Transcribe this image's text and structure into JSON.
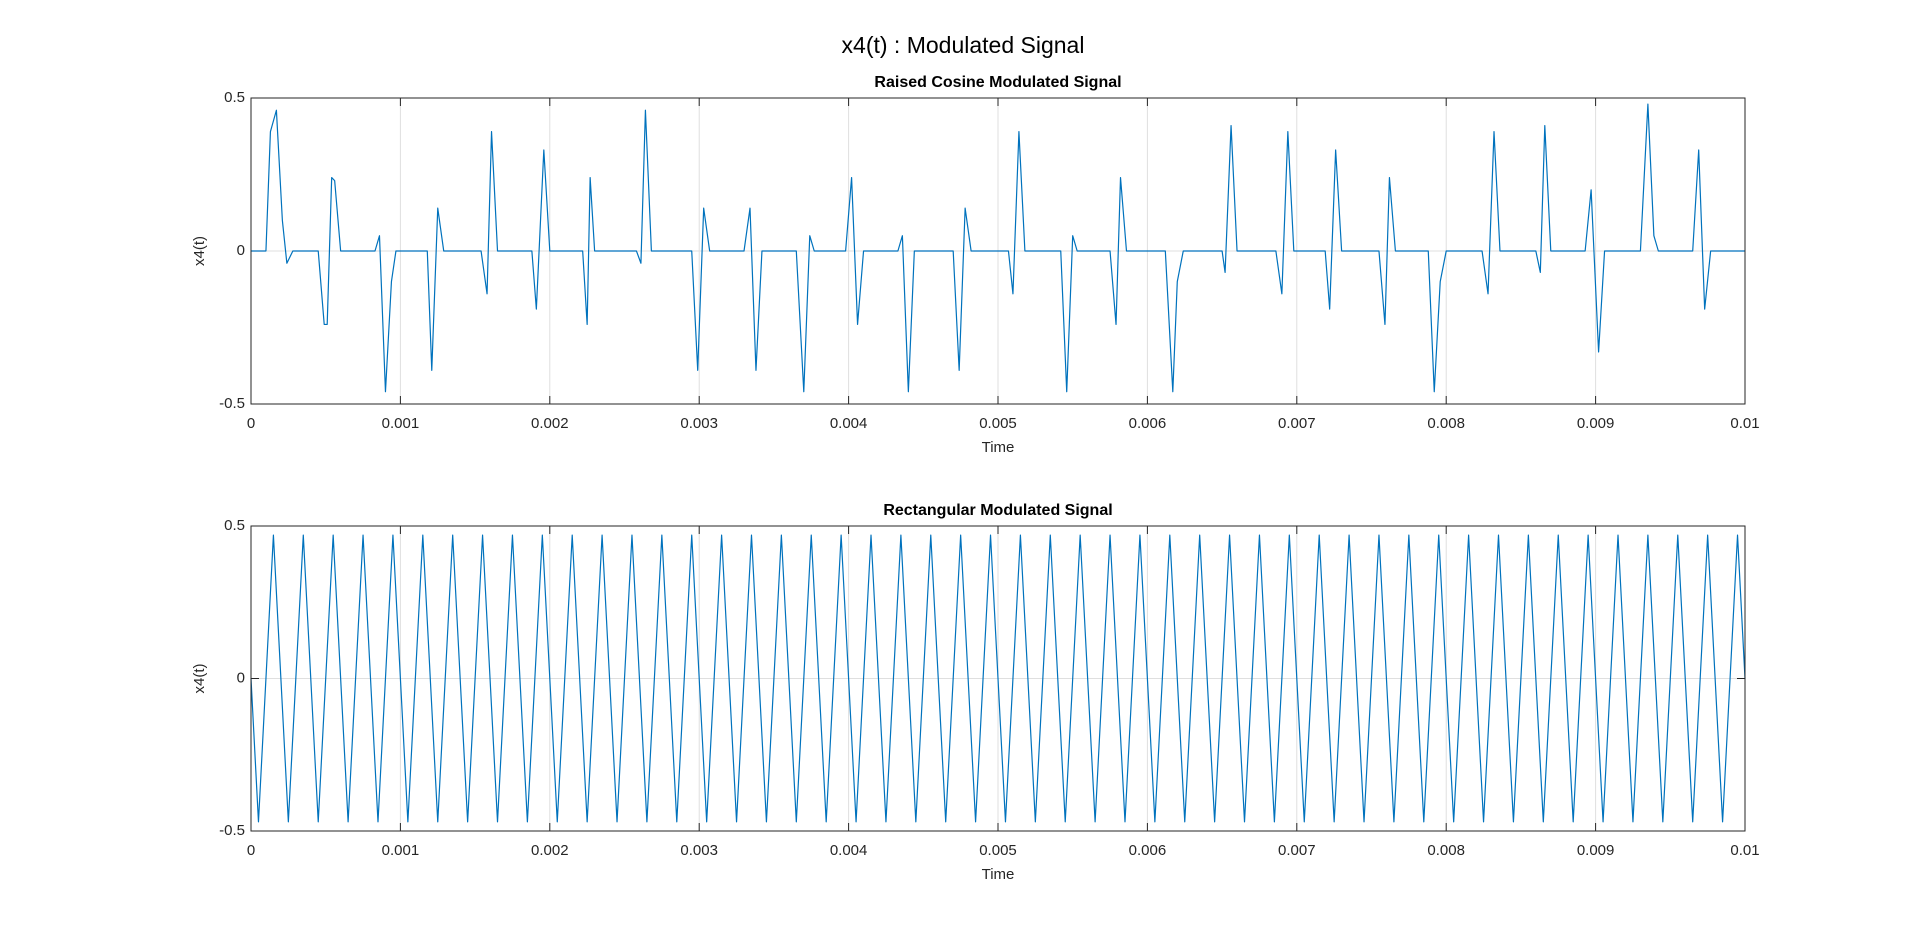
{
  "title": "x4(t) : Modulated Signal",
  "chart_data": [
    {
      "type": "line",
      "title": "Raised Cosine Modulated Signal",
      "xlabel": "Time",
      "ylabel": "x4(t)",
      "color": "#0072bd",
      "grid": true,
      "xlim": [
        0,
        0.01
      ],
      "ylim": [
        -0.5,
        0.5
      ],
      "xticks": [
        0,
        0.001,
        0.002,
        0.003,
        0.004,
        0.005,
        0.006,
        0.007,
        0.008,
        0.009,
        0.01
      ],
      "yticks": [
        -0.5,
        0,
        0.5
      ],
      "x": [
        0,
        0.0001,
        0.00013,
        0.00017,
        0.00021,
        0.00024,
        0.00028,
        0.00045,
        0.00049,
        0.00051,
        0.00054,
        0.00056,
        0.0006,
        0.00083,
        0.00086,
        0.0009,
        0.00094,
        0.00097,
        0.00118,
        0.00121,
        0.00125,
        0.00129,
        0.00154,
        0.00158,
        0.00161,
        0.00165,
        0.00188,
        0.00191,
        0.00196,
        0.002,
        0.00222,
        0.00225,
        0.00227,
        0.0023,
        0.00258,
        0.00261,
        0.00264,
        0.00268,
        0.00295,
        0.00299,
        0.00303,
        0.00307,
        0.0033,
        0.00334,
        0.00338,
        0.00342,
        0.00365,
        0.0037,
        0.00374,
        0.00377,
        0.00398,
        0.00402,
        0.00406,
        0.0041,
        0.00433,
        0.00436,
        0.0044,
        0.00444,
        0.0047,
        0.00474,
        0.00478,
        0.00482,
        0.00507,
        0.0051,
        0.00514,
        0.00518,
        0.00542,
        0.00546,
        0.0055,
        0.00553,
        0.00575,
        0.00579,
        0.00582,
        0.00586,
        0.00612,
        0.00617,
        0.0062,
        0.00624,
        0.0065,
        0.00652,
        0.00656,
        0.0066,
        0.00686,
        0.0069,
        0.00694,
        0.00698,
        0.00719,
        0.00722,
        0.00726,
        0.0073,
        0.00755,
        0.00759,
        0.00762,
        0.00766,
        0.00788,
        0.00792,
        0.00796,
        0.008,
        0.00824,
        0.00828,
        0.00832,
        0.00836,
        0.0086,
        0.00863,
        0.00866,
        0.0087,
        0.00893,
        0.00897,
        0.00902,
        0.00906,
        0.0093,
        0.00935,
        0.00939,
        0.00942,
        0.00965,
        0.00969,
        0.00973,
        0.00977,
        0.01
      ],
      "values": [
        0,
        0,
        0.39,
        0.46,
        0.1,
        -0.04,
        0,
        0,
        -0.24,
        -0.24,
        0.24,
        0.23,
        0,
        0,
        0.05,
        -0.46,
        -0.1,
        0,
        0,
        -0.39,
        0.14,
        0,
        0,
        -0.14,
        0.39,
        0,
        0,
        -0.19,
        0.33,
        0,
        0,
        -0.24,
        0.24,
        0,
        0,
        -0.04,
        0.46,
        0,
        0,
        -0.39,
        0.14,
        0,
        0,
        0.14,
        -0.39,
        0,
        0,
        -0.46,
        0.05,
        0,
        0,
        0.24,
        -0.24,
        0,
        0,
        0.05,
        -0.46,
        0,
        0,
        -0.39,
        0.14,
        0,
        0,
        -0.14,
        0.39,
        0,
        0,
        -0.46,
        0.05,
        0,
        0,
        -0.24,
        0.24,
        0,
        0,
        -0.46,
        -0.1,
        0,
        0,
        -0.07,
        0.41,
        0,
        0,
        -0.14,
        0.39,
        0,
        0,
        -0.19,
        0.33,
        0,
        0,
        -0.24,
        0.24,
        0,
        0,
        -0.46,
        -0.1,
        0,
        0,
        -0.14,
        0.39,
        0,
        0,
        -0.07,
        0.41,
        0,
        0,
        0.2,
        -0.33,
        0,
        0,
        0.48,
        0.05,
        0,
        0,
        0.33,
        -0.19,
        0,
        0
      ]
    },
    {
      "type": "line",
      "title": "Rectangular Modulated Signal",
      "xlabel": "Time",
      "ylabel": "x4(t)",
      "color": "#0072bd",
      "grid": true,
      "xlim": [
        0,
        0.01
      ],
      "ylim": [
        -0.5,
        0.5
      ],
      "xticks": [
        0,
        0.001,
        0.002,
        0.003,
        0.004,
        0.005,
        0.006,
        0.007,
        0.008,
        0.009,
        0.01
      ],
      "yticks": [
        -0.5,
        0,
        0.5
      ],
      "x": [
        0,
        5e-05,
        0.00015,
        0.00025,
        0.00035,
        0.00045,
        0.00055,
        0.00065,
        0.00075,
        0.00085,
        0.00095,
        0.00105,
        0.00115,
        0.00125,
        0.00135,
        0.00145,
        0.00155,
        0.00165,
        0.00175,
        0.00185,
        0.00195,
        0.00205,
        0.00215,
        0.00225,
        0.00235,
        0.00245,
        0.00255,
        0.00265,
        0.00275,
        0.00285,
        0.00295,
        0.00305,
        0.00315,
        0.00325,
        0.00335,
        0.00345,
        0.00355,
        0.00365,
        0.00375,
        0.00385,
        0.00395,
        0.00405,
        0.00415,
        0.00425,
        0.00435,
        0.00445,
        0.00455,
        0.00465,
        0.00475,
        0.00485,
        0.00495,
        0.00505,
        0.00515,
        0.00525,
        0.00535,
        0.00545,
        0.00555,
        0.00565,
        0.00575,
        0.00585,
        0.00595,
        0.00605,
        0.00615,
        0.00625,
        0.00635,
        0.00645,
        0.00655,
        0.00665,
        0.00675,
        0.00685,
        0.00695,
        0.00705,
        0.00715,
        0.00725,
        0.00735,
        0.00745,
        0.00755,
        0.00765,
        0.00775,
        0.00785,
        0.00795,
        0.00805,
        0.00815,
        0.00825,
        0.00835,
        0.00845,
        0.00855,
        0.00865,
        0.00875,
        0.00885,
        0.00895,
        0.00905,
        0.00915,
        0.00925,
        0.00935,
        0.00945,
        0.00955,
        0.00965,
        0.00975,
        0.00985,
        0.00995,
        0.01
      ],
      "values": [
        0,
        -0.47,
        0.47,
        -0.47,
        0.47,
        -0.47,
        0.47,
        -0.47,
        0.47,
        -0.47,
        0.47,
        -0.47,
        0.47,
        -0.47,
        0.47,
        -0.47,
        0.47,
        -0.47,
        0.47,
        -0.47,
        0.47,
        -0.47,
        0.47,
        -0.47,
        0.47,
        -0.47,
        0.47,
        -0.47,
        0.47,
        -0.47,
        0.47,
        -0.47,
        0.47,
        -0.47,
        0.47,
        -0.47,
        0.47,
        -0.47,
        0.47,
        -0.47,
        0.47,
        -0.47,
        0.47,
        -0.47,
        0.47,
        -0.47,
        0.47,
        -0.47,
        0.47,
        -0.47,
        0.47,
        -0.47,
        0.47,
        -0.47,
        0.47,
        -0.47,
        0.47,
        -0.47,
        0.47,
        -0.47,
        0.47,
        -0.47,
        0.47,
        -0.47,
        0.47,
        -0.47,
        0.47,
        -0.47,
        0.47,
        -0.47,
        0.47,
        -0.47,
        0.47,
        -0.47,
        0.47,
        -0.47,
        0.47,
        -0.47,
        0.47,
        -0.47,
        0.47,
        -0.47,
        0.47,
        -0.47,
        0.47,
        -0.47,
        0.47,
        -0.47,
        0.47,
        -0.47,
        0.47,
        -0.47,
        0.47,
        -0.47,
        0.47,
        -0.47,
        0.47,
        -0.47,
        0.47,
        -0.47,
        0.47,
        0
      ]
    }
  ]
}
